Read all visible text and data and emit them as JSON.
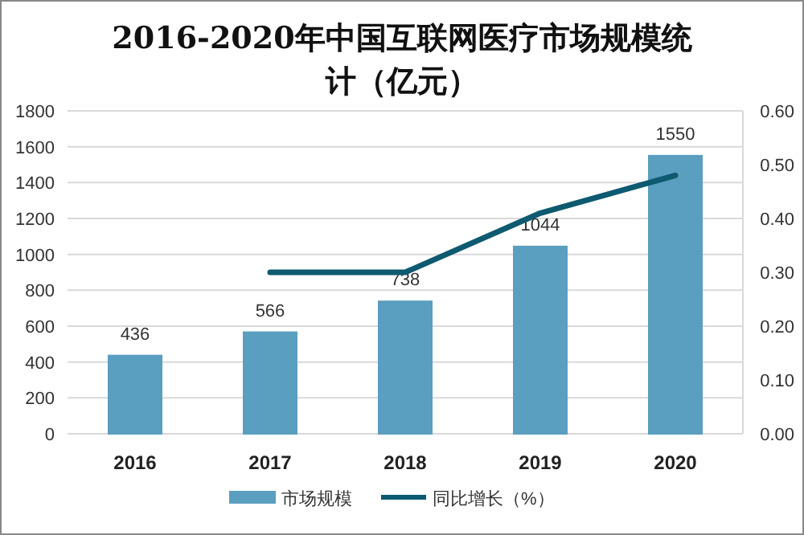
{
  "chart_data": {
    "type": "bar",
    "title": "2016-2020年中国互联网医疗市场规模统计（亿元）",
    "categories": [
      "2016",
      "2017",
      "2018",
      "2019",
      "2020"
    ],
    "series": [
      {
        "name": "市场规模",
        "type": "bar",
        "color": "#5a9ec0",
        "values": [
          436,
          566,
          738,
          1044,
          1550
        ],
        "value_labels": [
          "436",
          "566",
          "738",
          "1044",
          "1550"
        ]
      },
      {
        "name": "同比增长（%）",
        "type": "line",
        "axis": "y2",
        "color": "#0e5a70",
        "values": [
          null,
          0.3,
          0.3,
          0.41,
          0.48
        ]
      }
    ],
    "ylim": [
      0,
      1800
    ],
    "yticks": [
      0,
      200,
      400,
      600,
      800,
      1000,
      1200,
      1400,
      1600,
      1800
    ],
    "y2lim": [
      0,
      0.6
    ],
    "y2ticks": [
      {
        "value": 0,
        "label": "0.00"
      },
      {
        "value": 0.1,
        "label": "0.10"
      },
      {
        "value": 0.2,
        "label": "0.20"
      },
      {
        "value": 0.3,
        "label": "0.30"
      },
      {
        "value": 0.4,
        "label": "0.40"
      },
      {
        "value": 0.5,
        "label": "0.50"
      },
      {
        "value": 0.6,
        "label": "0.60"
      }
    ],
    "grid": "y",
    "legend": "bottom",
    "marker": "none"
  }
}
